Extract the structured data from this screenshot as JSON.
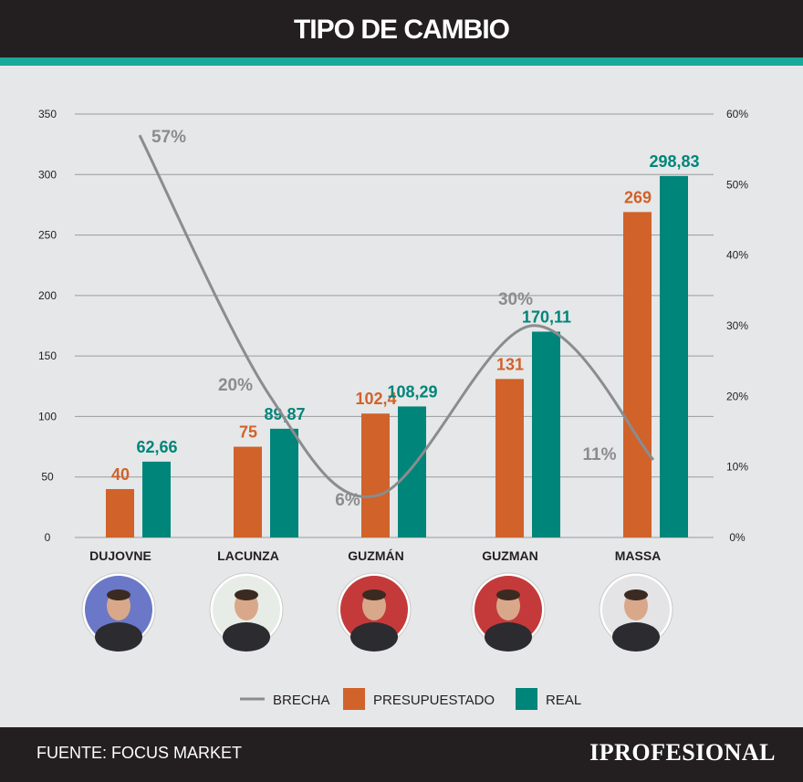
{
  "header": {
    "title": "TIPO DE CAMBIO"
  },
  "chart_data": {
    "type": "bar",
    "categories": [
      "DUJOVNE",
      "LACUNZA",
      "GUZMÁN",
      "GUZMAN",
      "MASSA"
    ],
    "series": [
      {
        "name": "PRESUPUESTADO",
        "type": "bar",
        "color": "#d0622a",
        "values": [
          40,
          75,
          102.4,
          131,
          269
        ],
        "labels": [
          "40",
          "75",
          "102,4",
          "131",
          "269"
        ]
      },
      {
        "name": "REAL",
        "type": "bar",
        "color": "#00857a",
        "values": [
          62.66,
          89.87,
          108.29,
          170.11,
          298.83
        ],
        "labels": [
          "62,66",
          "89,87",
          "108,29",
          "170,11",
          "298,83"
        ]
      },
      {
        "name": "BRECHA",
        "type": "line",
        "axis": "right",
        "color": "#8a8c8e",
        "values": [
          57,
          20,
          6,
          30,
          11
        ],
        "labels": [
          "57%",
          "20%",
          "6%",
          "30%",
          "11%"
        ]
      }
    ],
    "y_left": {
      "ylim": [
        0,
        350
      ],
      "ticks": [
        "0",
        "50",
        "100",
        "150",
        "200",
        "250",
        "300",
        "350"
      ]
    },
    "y_right": {
      "ylim": [
        0,
        60
      ],
      "ticks": [
        "0%",
        "10%",
        "20%",
        "30%",
        "40%",
        "50%",
        "60%"
      ]
    },
    "grid": true,
    "legend": {
      "position": "bottom",
      "items": [
        "BRECHA",
        "PRESUPUESTADO",
        "REAL"
      ]
    }
  },
  "footer": {
    "source": "FUENTE: FOCUS MARKET",
    "brand": "IPROFESIONAL"
  }
}
